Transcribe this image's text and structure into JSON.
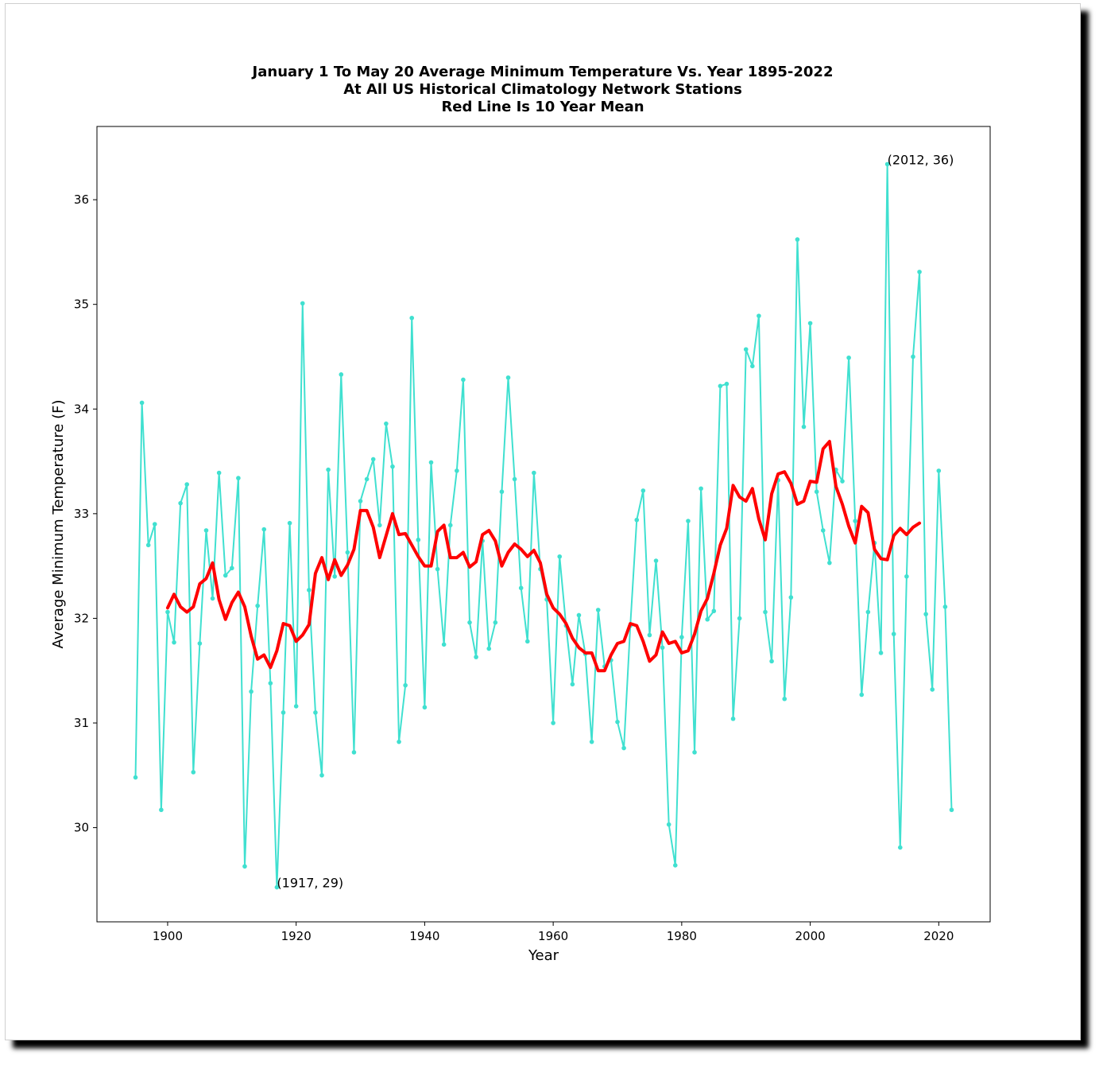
{
  "chart_data": {
    "type": "line",
    "title_lines": [
      "January 1 To May 20 Average Minimum Temperature Vs. Year 1895-2022",
      "At All US Historical Climatology Network Stations",
      "Red Line Is 10 Year Mean"
    ],
    "xlabel": "Year",
    "ylabel": "Average Minimum Temperature (F)",
    "xlim": [
      1889,
      2028
    ],
    "ylim": [
      29.1,
      36.7
    ],
    "xticks": [
      1900,
      1920,
      1940,
      1960,
      1980,
      2000,
      2020
    ],
    "yticks": [
      30,
      31,
      32,
      33,
      34,
      35,
      36
    ],
    "colors": {
      "yearly": "#40e0d0",
      "mean": "#ff0000"
    },
    "series": [
      {
        "style": "line-with-dots",
        "x_start": 1895,
        "values": [
          30.48,
          34.06,
          32.7,
          32.9,
          30.17,
          32.06,
          31.77,
          33.1,
          33.28,
          30.53,
          31.76,
          32.84,
          32.19,
          33.39,
          32.41,
          32.48,
          33.34,
          29.63,
          31.3,
          32.12,
          32.85,
          31.38,
          29.43,
          31.1,
          32.91,
          31.16,
          35.01,
          32.27,
          31.1,
          30.5,
          33.42,
          32.4,
          34.33,
          32.63,
          30.72,
          33.12,
          33.33,
          33.52,
          32.89,
          33.86,
          33.45,
          30.82,
          31.36,
          34.87,
          32.75,
          31.15,
          33.49,
          32.47,
          31.75,
          32.89,
          33.41,
          34.28,
          31.96,
          31.63,
          32.74,
          31.71,
          31.96,
          33.21,
          34.3,
          33.33,
          32.29,
          31.78,
          33.39,
          32.47,
          32.18,
          31.0,
          32.59,
          31.93,
          31.37,
          32.03,
          31.66,
          30.82,
          32.08,
          31.54,
          31.6,
          31.01,
          30.76,
          31.93,
          32.94,
          33.22,
          31.84,
          32.55,
          31.72,
          30.03,
          29.64,
          31.82,
          32.93,
          30.72,
          33.24,
          31.99,
          32.07,
          34.22,
          34.24,
          31.04,
          32.0,
          34.57,
          34.41,
          34.89,
          32.06,
          31.59,
          33.32,
          31.23,
          32.2,
          35.62,
          33.83,
          34.82,
          33.21,
          32.84,
          32.53,
          33.42,
          33.31,
          34.49,
          32.93,
          31.27,
          32.06,
          32.72,
          31.67,
          36.34,
          31.85,
          29.81,
          32.4,
          34.5,
          35.31,
          32.04,
          31.32,
          33.41,
          32.11,
          30.17
        ]
      },
      {
        "style": "thick-line",
        "x_start": 1900,
        "values": [
          32.1,
          32.23,
          32.11,
          32.06,
          32.11,
          32.33,
          32.38,
          32.53,
          32.18,
          31.99,
          32.15,
          32.25,
          32.11,
          31.83,
          31.61,
          31.65,
          31.53,
          31.69,
          31.95,
          31.93,
          31.78,
          31.84,
          31.94,
          32.43,
          32.58,
          32.37,
          32.56,
          32.41,
          32.51,
          32.66,
          33.03,
          33.03,
          32.87,
          32.58,
          32.79,
          33.0,
          32.8,
          32.81,
          32.7,
          32.59,
          32.5,
          32.5,
          32.83,
          32.89,
          32.58,
          32.58,
          32.63,
          32.49,
          32.54,
          32.8,
          32.84,
          32.74,
          32.5,
          32.63,
          32.71,
          32.66,
          32.59,
          32.65,
          32.53,
          32.23,
          32.1,
          32.04,
          31.95,
          31.81,
          31.72,
          31.67,
          31.67,
          31.5,
          31.5,
          31.65,
          31.76,
          31.78,
          31.95,
          31.93,
          31.78,
          31.59,
          31.65,
          31.87,
          31.76,
          31.78,
          31.67,
          31.69,
          31.85,
          32.07,
          32.19,
          32.43,
          32.7,
          32.86,
          33.27,
          33.16,
          33.12,
          33.24,
          32.95,
          32.75,
          33.19,
          33.38,
          33.4,
          33.29,
          33.09,
          33.12,
          33.31,
          33.3,
          33.62,
          33.69,
          33.26,
          33.09,
          32.88,
          32.72,
          33.07,
          33.01,
          32.66,
          32.57,
          32.56,
          32.79,
          32.86,
          32.8,
          32.87,
          32.91
        ]
      }
    ],
    "annotations": [
      {
        "x": 2012,
        "y": 36.34,
        "text": "(2012, 36)"
      },
      {
        "x": 1917,
        "y": 29.43,
        "text": "(1917, 29)"
      }
    ]
  }
}
